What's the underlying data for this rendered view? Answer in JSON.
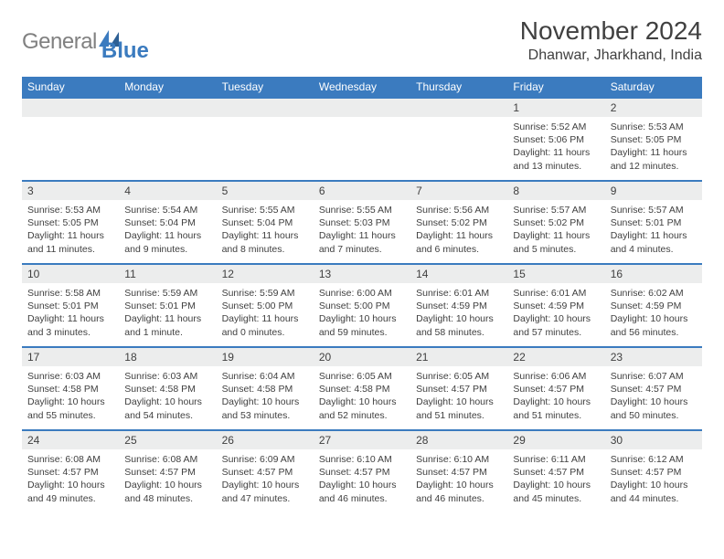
{
  "brand": {
    "text_gray": "General",
    "text_blue": "Blue"
  },
  "header": {
    "month_title": "November 2024",
    "location": "Dhanwar, Jharkhand, India"
  },
  "colors": {
    "accent": "#3b7bbf",
    "gray_bg": "#eceded",
    "text": "#404040",
    "logo_gray": "#808080"
  },
  "daynames": [
    "Sunday",
    "Monday",
    "Tuesday",
    "Wednesday",
    "Thursday",
    "Friday",
    "Saturday"
  ],
  "weeks": [
    {
      "nums": [
        "",
        "",
        "",
        "",
        "",
        "1",
        "2"
      ],
      "cells": [
        null,
        null,
        null,
        null,
        null,
        {
          "sunrise": "Sunrise: 5:52 AM",
          "sunset": "Sunset: 5:06 PM",
          "day1": "Daylight: 11 hours",
          "day2": "and 13 minutes."
        },
        {
          "sunrise": "Sunrise: 5:53 AM",
          "sunset": "Sunset: 5:05 PM",
          "day1": "Daylight: 11 hours",
          "day2": "and 12 minutes."
        }
      ]
    },
    {
      "nums": [
        "3",
        "4",
        "5",
        "6",
        "7",
        "8",
        "9"
      ],
      "cells": [
        {
          "sunrise": "Sunrise: 5:53 AM",
          "sunset": "Sunset: 5:05 PM",
          "day1": "Daylight: 11 hours",
          "day2": "and 11 minutes."
        },
        {
          "sunrise": "Sunrise: 5:54 AM",
          "sunset": "Sunset: 5:04 PM",
          "day1": "Daylight: 11 hours",
          "day2": "and 9 minutes."
        },
        {
          "sunrise": "Sunrise: 5:55 AM",
          "sunset": "Sunset: 5:04 PM",
          "day1": "Daylight: 11 hours",
          "day2": "and 8 minutes."
        },
        {
          "sunrise": "Sunrise: 5:55 AM",
          "sunset": "Sunset: 5:03 PM",
          "day1": "Daylight: 11 hours",
          "day2": "and 7 minutes."
        },
        {
          "sunrise": "Sunrise: 5:56 AM",
          "sunset": "Sunset: 5:02 PM",
          "day1": "Daylight: 11 hours",
          "day2": "and 6 minutes."
        },
        {
          "sunrise": "Sunrise: 5:57 AM",
          "sunset": "Sunset: 5:02 PM",
          "day1": "Daylight: 11 hours",
          "day2": "and 5 minutes."
        },
        {
          "sunrise": "Sunrise: 5:57 AM",
          "sunset": "Sunset: 5:01 PM",
          "day1": "Daylight: 11 hours",
          "day2": "and 4 minutes."
        }
      ]
    },
    {
      "nums": [
        "10",
        "11",
        "12",
        "13",
        "14",
        "15",
        "16"
      ],
      "cells": [
        {
          "sunrise": "Sunrise: 5:58 AM",
          "sunset": "Sunset: 5:01 PM",
          "day1": "Daylight: 11 hours",
          "day2": "and 3 minutes."
        },
        {
          "sunrise": "Sunrise: 5:59 AM",
          "sunset": "Sunset: 5:01 PM",
          "day1": "Daylight: 11 hours",
          "day2": "and 1 minute."
        },
        {
          "sunrise": "Sunrise: 5:59 AM",
          "sunset": "Sunset: 5:00 PM",
          "day1": "Daylight: 11 hours",
          "day2": "and 0 minutes."
        },
        {
          "sunrise": "Sunrise: 6:00 AM",
          "sunset": "Sunset: 5:00 PM",
          "day1": "Daylight: 10 hours",
          "day2": "and 59 minutes."
        },
        {
          "sunrise": "Sunrise: 6:01 AM",
          "sunset": "Sunset: 4:59 PM",
          "day1": "Daylight: 10 hours",
          "day2": "and 58 minutes."
        },
        {
          "sunrise": "Sunrise: 6:01 AM",
          "sunset": "Sunset: 4:59 PM",
          "day1": "Daylight: 10 hours",
          "day2": "and 57 minutes."
        },
        {
          "sunrise": "Sunrise: 6:02 AM",
          "sunset": "Sunset: 4:59 PM",
          "day1": "Daylight: 10 hours",
          "day2": "and 56 minutes."
        }
      ]
    },
    {
      "nums": [
        "17",
        "18",
        "19",
        "20",
        "21",
        "22",
        "23"
      ],
      "cells": [
        {
          "sunrise": "Sunrise: 6:03 AM",
          "sunset": "Sunset: 4:58 PM",
          "day1": "Daylight: 10 hours",
          "day2": "and 55 minutes."
        },
        {
          "sunrise": "Sunrise: 6:03 AM",
          "sunset": "Sunset: 4:58 PM",
          "day1": "Daylight: 10 hours",
          "day2": "and 54 minutes."
        },
        {
          "sunrise": "Sunrise: 6:04 AM",
          "sunset": "Sunset: 4:58 PM",
          "day1": "Daylight: 10 hours",
          "day2": "and 53 minutes."
        },
        {
          "sunrise": "Sunrise: 6:05 AM",
          "sunset": "Sunset: 4:58 PM",
          "day1": "Daylight: 10 hours",
          "day2": "and 52 minutes."
        },
        {
          "sunrise": "Sunrise: 6:05 AM",
          "sunset": "Sunset: 4:57 PM",
          "day1": "Daylight: 10 hours",
          "day2": "and 51 minutes."
        },
        {
          "sunrise": "Sunrise: 6:06 AM",
          "sunset": "Sunset: 4:57 PM",
          "day1": "Daylight: 10 hours",
          "day2": "and 51 minutes."
        },
        {
          "sunrise": "Sunrise: 6:07 AM",
          "sunset": "Sunset: 4:57 PM",
          "day1": "Daylight: 10 hours",
          "day2": "and 50 minutes."
        }
      ]
    },
    {
      "nums": [
        "24",
        "25",
        "26",
        "27",
        "28",
        "29",
        "30"
      ],
      "cells": [
        {
          "sunrise": "Sunrise: 6:08 AM",
          "sunset": "Sunset: 4:57 PM",
          "day1": "Daylight: 10 hours",
          "day2": "and 49 minutes."
        },
        {
          "sunrise": "Sunrise: 6:08 AM",
          "sunset": "Sunset: 4:57 PM",
          "day1": "Daylight: 10 hours",
          "day2": "and 48 minutes."
        },
        {
          "sunrise": "Sunrise: 6:09 AM",
          "sunset": "Sunset: 4:57 PM",
          "day1": "Daylight: 10 hours",
          "day2": "and 47 minutes."
        },
        {
          "sunrise": "Sunrise: 6:10 AM",
          "sunset": "Sunset: 4:57 PM",
          "day1": "Daylight: 10 hours",
          "day2": "and 46 minutes."
        },
        {
          "sunrise": "Sunrise: 6:10 AM",
          "sunset": "Sunset: 4:57 PM",
          "day1": "Daylight: 10 hours",
          "day2": "and 46 minutes."
        },
        {
          "sunrise": "Sunrise: 6:11 AM",
          "sunset": "Sunset: 4:57 PM",
          "day1": "Daylight: 10 hours",
          "day2": "and 45 minutes."
        },
        {
          "sunrise": "Sunrise: 6:12 AM",
          "sunset": "Sunset: 4:57 PM",
          "day1": "Daylight: 10 hours",
          "day2": "and 44 minutes."
        }
      ]
    }
  ]
}
